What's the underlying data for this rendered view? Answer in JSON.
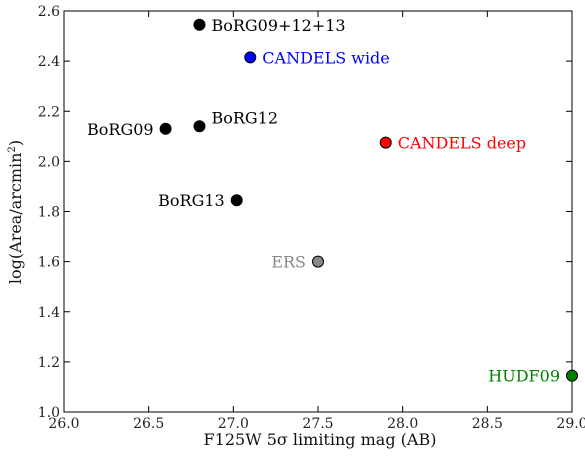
{
  "chart_data": {
    "type": "scatter",
    "xlabel": "F125W 5σ limiting mag (AB)",
    "ylabel_main": "log(Area/arcmin",
    "ylabel_sup": "2",
    "ylabel_end": ")",
    "xlim": [
      26.0,
      29.0
    ],
    "ylim": [
      1.0,
      2.6
    ],
    "xticks": [
      "26.0",
      "26.5",
      "27.0",
      "27.5",
      "28.0",
      "28.5",
      "29.0"
    ],
    "yticks": [
      "1.0",
      "1.2",
      "1.4",
      "1.6",
      "1.8",
      "2.0",
      "2.2",
      "2.4",
      "2.6"
    ],
    "grid": false,
    "points": [
      {
        "label": "BoRG09+12+13",
        "x": 26.8,
        "y": 2.545,
        "color": "#000000",
        "label_side": "right"
      },
      {
        "label": "CANDELS wide",
        "x": 27.1,
        "y": 2.415,
        "color": "#0000ff",
        "label_side": "right"
      },
      {
        "label": "BoRG09",
        "x": 26.6,
        "y": 2.13,
        "color": "#000000",
        "label_side": "left"
      },
      {
        "label": "BoRG12",
        "x": 26.8,
        "y": 2.14,
        "color": "#000000",
        "label_side": "right-up"
      },
      {
        "label": "CANDELS deep",
        "x": 27.9,
        "y": 2.075,
        "color": "#ff0000",
        "label_side": "right"
      },
      {
        "label": "BoRG13",
        "x": 27.02,
        "y": 1.845,
        "color": "#000000",
        "label_side": "left"
      },
      {
        "label": "ERS",
        "x": 27.5,
        "y": 1.6,
        "color": "#888888",
        "label_side": "left"
      },
      {
        "label": "HUDF09",
        "x": 29.0,
        "y": 1.145,
        "color": "#008000",
        "label_side": "left"
      }
    ]
  }
}
